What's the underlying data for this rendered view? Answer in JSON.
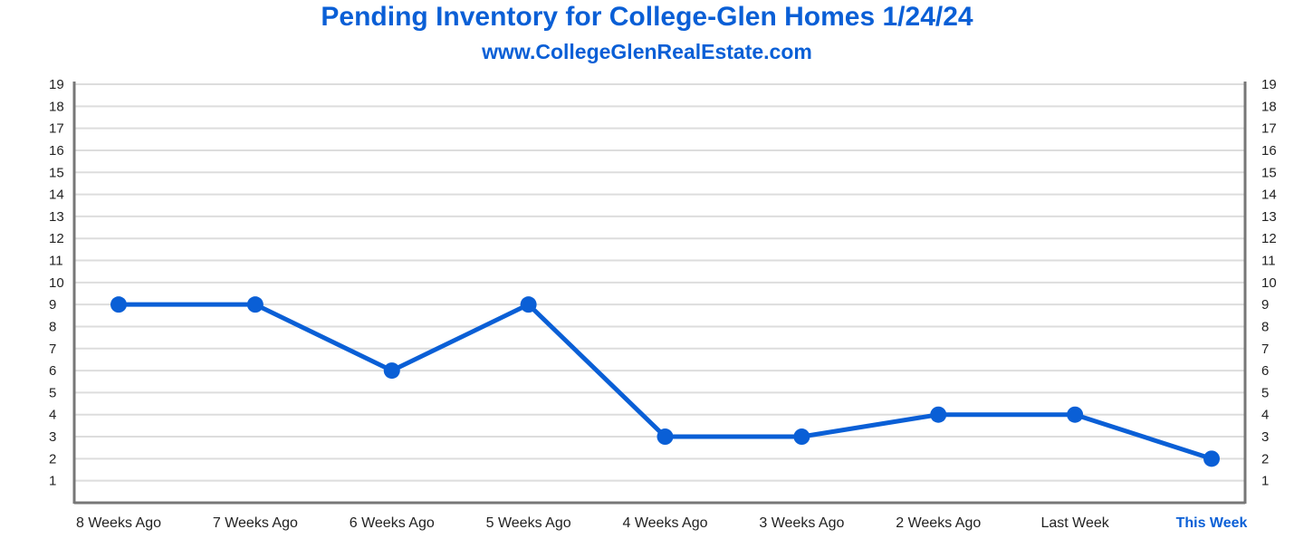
{
  "chart_data": {
    "type": "line",
    "title": "Pending Inventory for College-Glen Homes 1/24/24",
    "subtitle": "www.CollegeGlenRealEstate.com",
    "categories": [
      "8 Weeks Ago",
      "7 Weeks Ago",
      "6 Weeks Ago",
      "5 Weeks Ago",
      "4 Weeks Ago",
      "3 Weeks Ago",
      "2 Weeks Ago",
      "Last Week",
      "This Week"
    ],
    "series": [
      {
        "values": [
          9,
          9,
          6,
          9,
          3,
          3,
          4,
          4,
          2
        ]
      }
    ],
    "ylim": [
      0,
      19
    ],
    "yticks": [
      1,
      2,
      3,
      4,
      5,
      6,
      7,
      8,
      9,
      10,
      11,
      12,
      13,
      14,
      15,
      16,
      17,
      18,
      19
    ],
    "y_axis_both_sides": true,
    "grid": true,
    "highlight_category": "This Week",
    "colors": {
      "line": "#0a5fd6",
      "accent": "#0a5fd6",
      "grid": "#dddddd",
      "axis": "#777777"
    }
  }
}
